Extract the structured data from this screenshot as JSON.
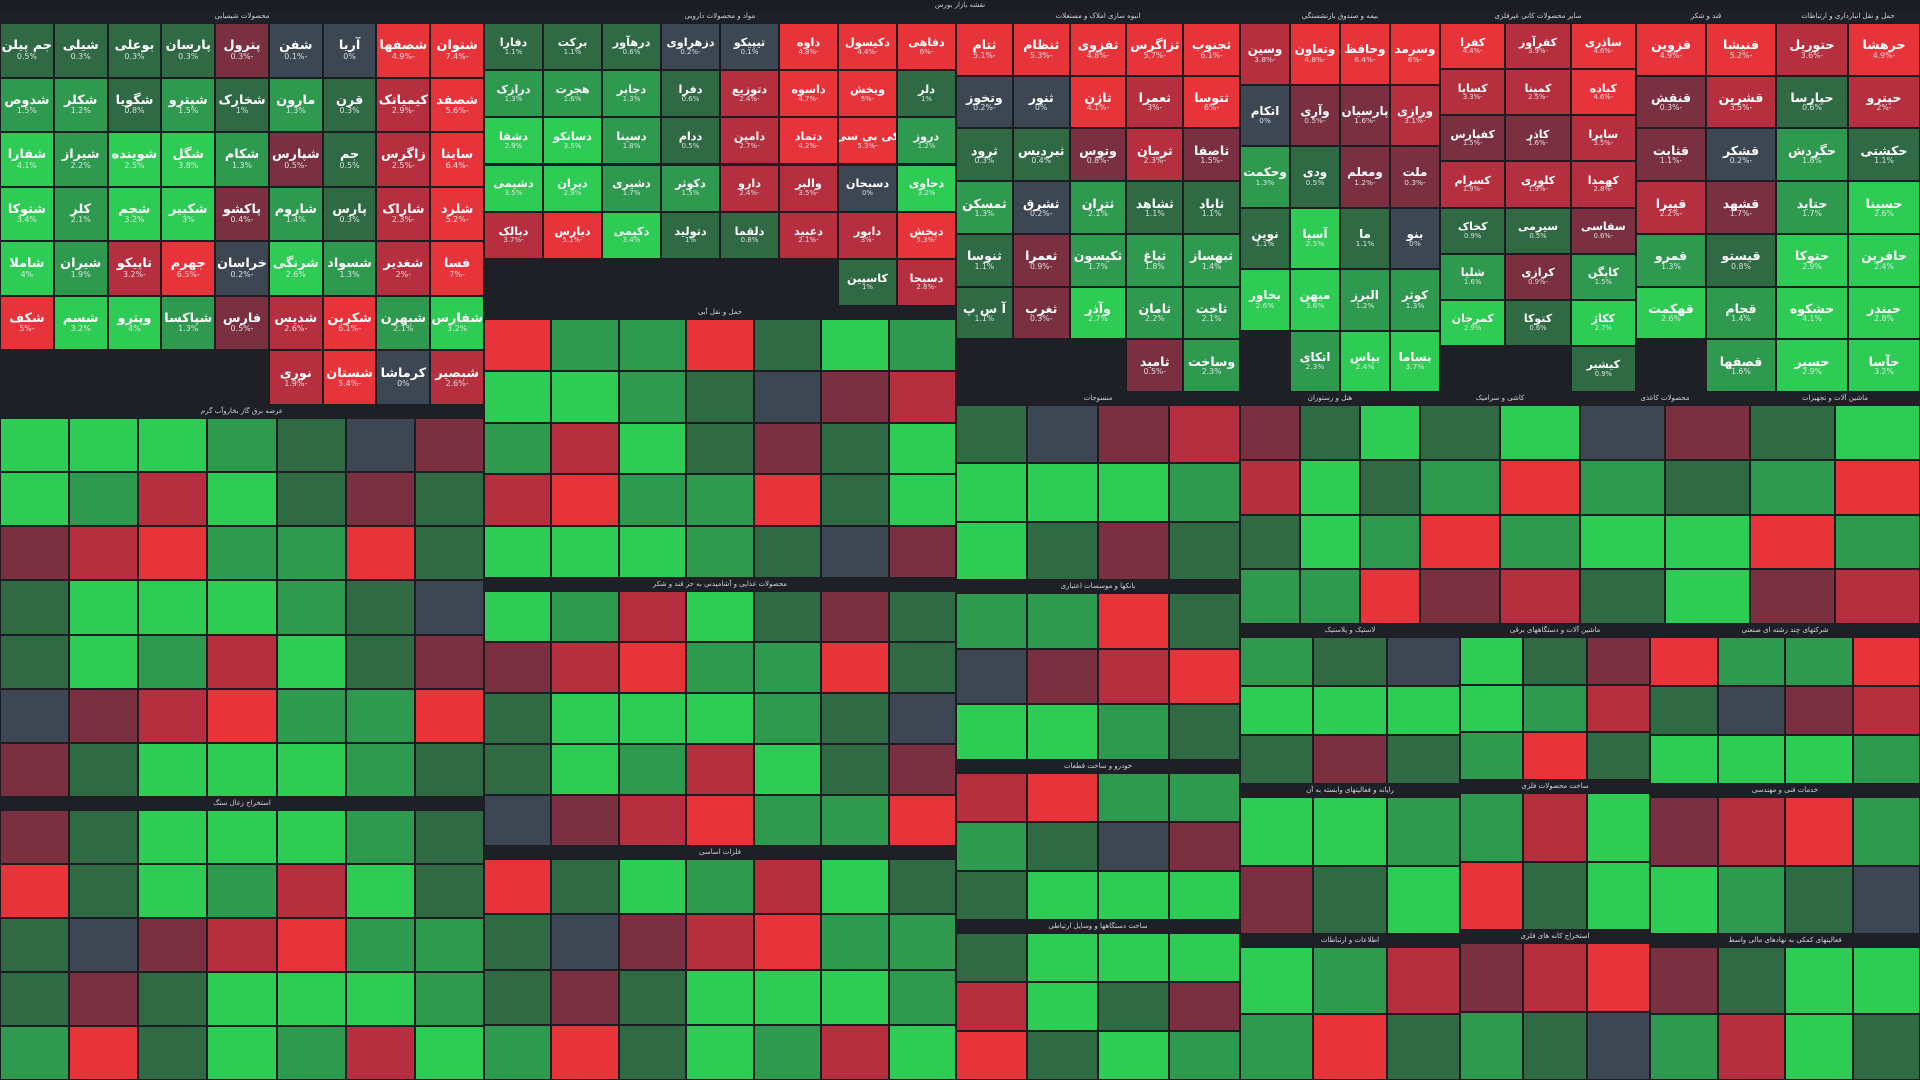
{
  "title": "نقشه بازار بورس",
  "palette": {
    "strong_red": "#e7343b",
    "mid_red": "#b52f3e",
    "weak_red": "#7a3040",
    "flat": "#3d4653",
    "weak_green": "#2f6a45",
    "mid_green": "#2f9a4f",
    "strong_green": "#2ecc55",
    "background": "#1c1d22"
  },
  "chart_data": {
    "type": "treemap",
    "title": "نقشه بازار بورس",
    "sectors": [
      {
        "name": "محصولات شیمیایی",
        "stocks": [
          {
            "symbol": "شتوان",
            "change": -7.4
          },
          {
            "symbol": "شصفها",
            "change": -4.9
          },
          {
            "symbol": "آریا",
            "change": 0
          },
          {
            "symbol": "شفن",
            "change": -0.1
          },
          {
            "symbol": "پترول",
            "change": -0.3
          },
          {
            "symbol": "پارسان",
            "change": 0.3
          },
          {
            "symbol": "بوعلی",
            "change": 0.3
          },
          {
            "symbol": "شیلی",
            "change": 0.3
          },
          {
            "symbol": "جم پیلن",
            "change": 0.5
          },
          {
            "symbol": "شصفد",
            "change": -5.6
          },
          {
            "symbol": "کیمیاتک",
            "change": -2.9
          },
          {
            "symbol": "قرن",
            "change": 0.3
          },
          {
            "symbol": "مارون",
            "change": 1.3
          },
          {
            "symbol": "شخارک",
            "change": 1.0
          },
          {
            "symbol": "شپترو",
            "change": 1.5
          },
          {
            "symbol": "شگویا",
            "change": 0.8
          },
          {
            "symbol": "شکلر",
            "change": 1.2
          },
          {
            "symbol": "شدوص",
            "change": 1.5
          },
          {
            "symbol": "ساینا",
            "change": -6.4
          },
          {
            "symbol": "زاگرس",
            "change": -2.5
          },
          {
            "symbol": "جم",
            "change": 0.5
          },
          {
            "symbol": "شپارس",
            "change": -0.5
          },
          {
            "symbol": "شکام",
            "change": 1.3
          },
          {
            "symbol": "شگل",
            "change": 3.8
          },
          {
            "symbol": "شوینده",
            "change": 2.5
          },
          {
            "symbol": "شیراز",
            "change": 2.2
          },
          {
            "symbol": "شفارا",
            "change": 4.1
          },
          {
            "symbol": "شلرد",
            "change": -5.2
          },
          {
            "symbol": "شاراک",
            "change": -2.3
          },
          {
            "symbol": "پارس",
            "change": 0.3
          },
          {
            "symbol": "شاروم",
            "change": 1.4
          },
          {
            "symbol": "پاکشو",
            "change": -0.4
          },
          {
            "symbol": "شکبیر",
            "change": 3.0
          },
          {
            "symbol": "شجم",
            "change": 3.2
          },
          {
            "symbol": "کلر",
            "change": 2.1
          },
          {
            "symbol": "شتوکا",
            "change": 3.4
          },
          {
            "symbol": "فسا",
            "change": -7.0
          },
          {
            "symbol": "شغدیر",
            "change": -2.0
          },
          {
            "symbol": "شسواد",
            "change": 1.3
          },
          {
            "symbol": "شرنگی",
            "change": 2.6
          },
          {
            "symbol": "خراسان",
            "change": -0.2
          },
          {
            "symbol": "جهرم",
            "change": -6.5
          },
          {
            "symbol": "تاپیکو",
            "change": -3.2
          },
          {
            "symbol": "شیران",
            "change": 1.9
          },
          {
            "symbol": "شاملا",
            "change": 4.0
          },
          {
            "symbol": "شفارس",
            "change": 3.2
          },
          {
            "symbol": "شبهرن",
            "change": 2.1
          },
          {
            "symbol": "شکربن",
            "change": -6.1
          },
          {
            "symbol": "شدیس",
            "change": -2.6
          },
          {
            "symbol": "فارس",
            "change": -0.5
          },
          {
            "symbol": "شپاکسا",
            "change": 1.3
          },
          {
            "symbol": "وپترو",
            "change": 4.0
          },
          {
            "symbol": "شسم",
            "change": 3.2
          },
          {
            "symbol": "شکف",
            "change": -5.0
          },
          {
            "symbol": "شبصیر",
            "change": -2.6
          },
          {
            "symbol": "کرماشا",
            "change": 0
          },
          {
            "symbol": "شستان",
            "change": -5.4
          },
          {
            "symbol": "نوری",
            "change": -1.9
          }
        ]
      },
      {
        "name": "مواد و محصولات دارویی",
        "stocks": [
          {
            "symbol": "دفاهی",
            "change": -6.0
          },
          {
            "symbol": "دکیسول",
            "change": -4.4
          },
          {
            "symbol": "داوه",
            "change": -4.8
          },
          {
            "symbol": "تیپیکو",
            "change": 0.1
          },
          {
            "symbol": "دزهراوی",
            "change": -0.2
          },
          {
            "symbol": "درهآور",
            "change": 0.6
          },
          {
            "symbol": "برکت",
            "change": 1.1
          },
          {
            "symbol": "دفارا",
            "change": 1.1
          },
          {
            "symbol": "دلر",
            "change": 1.0
          },
          {
            "symbol": "ویخش",
            "change": -5.0
          },
          {
            "symbol": "داسوه",
            "change": -4.7
          },
          {
            "symbol": "دتوزیع",
            "change": -2.4
          },
          {
            "symbol": "دفرا",
            "change": 0.6
          },
          {
            "symbol": "دجابر",
            "change": 1.3
          },
          {
            "symbol": "هجرت",
            "change": 1.6
          },
          {
            "symbol": "درازک",
            "change": 1.3
          },
          {
            "symbol": "دروز",
            "change": 1.2
          },
          {
            "symbol": "کی بی سی",
            "change": -5.3
          },
          {
            "symbol": "دتماد",
            "change": -4.2
          },
          {
            "symbol": "دامین",
            "change": -2.7
          },
          {
            "symbol": "ددام",
            "change": 0.5
          },
          {
            "symbol": "دسینا",
            "change": 1.8
          },
          {
            "symbol": "دسانکو",
            "change": 3.5
          },
          {
            "symbol": "دشفا",
            "change": 2.9
          },
          {
            "symbol": "دحاوی",
            "change": 3.2
          },
          {
            "symbol": "دسبحان",
            "change": 0
          },
          {
            "symbol": "والبر",
            "change": -3.5
          },
          {
            "symbol": "دارو",
            "change": -2.4
          },
          {
            "symbol": "دکوثر",
            "change": 1.5
          },
          {
            "symbol": "دشیری",
            "change": 1.7
          },
          {
            "symbol": "دیران",
            "change": 2.9
          },
          {
            "symbol": "دشیمی",
            "change": 3.5
          },
          {
            "symbol": "دپخش",
            "change": -5.3
          },
          {
            "symbol": "دابور",
            "change": -3.0
          },
          {
            "symbol": "دعبید",
            "change": -2.1
          },
          {
            "symbol": "دلقما",
            "change": 0.8
          },
          {
            "symbol": "دتولید",
            "change": 1.0
          },
          {
            "symbol": "دکیمی",
            "change": 3.4
          },
          {
            "symbol": "دیارس",
            "change": -5.1
          },
          {
            "symbol": "دبالک",
            "change": -3.7
          },
          {
            "symbol": "دسبحا",
            "change": -2.8
          },
          {
            "symbol": "کاسپین",
            "change": 1.0
          }
        ]
      },
      {
        "name": "بیمه و صندوق بازنشستگی",
        "stocks": [
          {
            "symbol": "وسرمد",
            "change": -6.0
          },
          {
            "symbol": "وحافظ",
            "change": -6.4
          },
          {
            "symbol": "وتعاون",
            "change": -4.8
          },
          {
            "symbol": "وسین",
            "change": -3.8
          },
          {
            "symbol": "ورازی",
            "change": -3.1
          },
          {
            "symbol": "پارسیان",
            "change": -1.6
          },
          {
            "symbol": "وآری",
            "change": -0.5
          },
          {
            "symbol": "اتکام",
            "change": 0
          },
          {
            "symbol": "ملت",
            "change": -0.3
          },
          {
            "symbol": "ومعلم",
            "change": -1.2
          },
          {
            "symbol": "ودی",
            "change": 0.5
          },
          {
            "symbol": "وحکمت",
            "change": 1.3
          },
          {
            "symbol": "بنو",
            "change": 0
          },
          {
            "symbol": "ما",
            "change": 1.1
          },
          {
            "symbol": "آسیا",
            "change": 2.5
          },
          {
            "symbol": "نوین",
            "change": 1.1
          },
          {
            "symbol": "کوثر",
            "change": 1.3
          },
          {
            "symbol": "البرز",
            "change": 1.2
          },
          {
            "symbol": "میهن",
            "change": 3.6
          },
          {
            "symbol": "بخاور",
            "change": 2.6
          },
          {
            "symbol": "بساما",
            "change": 3.7
          },
          {
            "symbol": "بپاس",
            "change": 2.4
          },
          {
            "symbol": "اتکای",
            "change": 2.3
          }
        ]
      },
      {
        "name": "سایر محصولات کانی غیرفلزی",
        "stocks": [
          {
            "symbol": "ساذری",
            "change": -4.6
          },
          {
            "symbol": "کفرآور",
            "change": -3.9
          },
          {
            "symbol": "کفرا",
            "change": -4.4
          },
          {
            "symbol": "کباده",
            "change": -4.6
          },
          {
            "symbol": "کمینا",
            "change": -2.5
          },
          {
            "symbol": "کسایا",
            "change": -3.3
          },
          {
            "symbol": "ساپرا",
            "change": -3.5
          },
          {
            "symbol": "کاذر",
            "change": -1.6
          },
          {
            "symbol": "کفپارس",
            "change": -1.5
          },
          {
            "symbol": "کهمدا",
            "change": -2.8
          },
          {
            "symbol": "کلوری",
            "change": -1.9
          },
          {
            "symbol": "کسرام",
            "change": -1.9
          },
          {
            "symbol": "سفاسی",
            "change": -0.6
          },
          {
            "symbol": "سیرمی",
            "change": 0.5
          },
          {
            "symbol": "کخاک",
            "change": 0.9
          },
          {
            "symbol": "کایگن",
            "change": 1.5
          },
          {
            "symbol": "کرازی",
            "change": -0.9
          },
          {
            "symbol": "شلیا",
            "change": 1.6
          },
          {
            "symbol": "ککاژ",
            "change": 2.7
          },
          {
            "symbol": "کتوکا",
            "change": 0.6
          },
          {
            "symbol": "کمرجان",
            "change": 2.9
          },
          {
            "symbol": "کیشیر",
            "change": 0.9
          }
        ]
      },
      {
        "name": "قند و شکر",
        "stocks": [
          {
            "symbol": "قنیشا",
            "change": -5.2
          },
          {
            "symbol": "قزوین",
            "change": -4.9
          },
          {
            "symbol": "قشرین",
            "change": -3.5
          },
          {
            "symbol": "قنقش",
            "change": -0.3
          },
          {
            "symbol": "قشکر",
            "change": -0.2
          },
          {
            "symbol": "قثابت",
            "change": -1.1
          },
          {
            "symbol": "قشهد",
            "change": -1.7
          },
          {
            "symbol": "قپیرا",
            "change": -2.2
          },
          {
            "symbol": "قیستو",
            "change": 0.8
          },
          {
            "symbol": "قمرو",
            "change": 1.3
          },
          {
            "symbol": "قجام",
            "change": 1.4
          },
          {
            "symbol": "قهکمت",
            "change": 2.6
          },
          {
            "symbol": "قصفها",
            "change": 1.6
          }
        ]
      },
      {
        "name": "حمل و نقل انبارداری و ارتباطات",
        "stocks": [
          {
            "symbol": "حرهشا",
            "change": -4.9
          },
          {
            "symbol": "حتوریل",
            "change": -3.6
          },
          {
            "symbol": "حپترو",
            "change": -2.0
          },
          {
            "symbol": "حپارسا",
            "change": 0.6
          },
          {
            "symbol": "حکشتی",
            "change": 1.1
          },
          {
            "symbol": "حگردش",
            "change": 1.8
          },
          {
            "symbol": "حسینا",
            "change": 2.6
          },
          {
            "symbol": "حتاید",
            "change": 1.7
          },
          {
            "symbol": "حافرین",
            "change": 2.4
          },
          {
            "symbol": "حتوکا",
            "change": 2.9
          },
          {
            "symbol": "حبندر",
            "change": 2.8
          },
          {
            "symbol": "حشکوه",
            "change": 4.1
          },
          {
            "symbol": "حآسا",
            "change": 3.2
          },
          {
            "symbol": "حسیر",
            "change": 2.9
          }
        ]
      },
      {
        "name": "انبوه سازی املاک و مستغلات",
        "stocks": [
          {
            "symbol": "ثجنوب",
            "change": -6.1
          },
          {
            "symbol": "ثزاگرس",
            "change": -5.7
          },
          {
            "symbol": "ثفزوی",
            "change": -4.8
          },
          {
            "symbol": "ثنظام",
            "change": -5.3
          },
          {
            "symbol": "ثتام",
            "change": -5.1
          },
          {
            "symbol": "ثتوسا",
            "change": -6.0
          },
          {
            "symbol": "ثعمرا",
            "change": -3.0
          },
          {
            "symbol": "ثاژن",
            "change": -4.1
          },
          {
            "symbol": "ثنور",
            "change": 0
          },
          {
            "symbol": "وتخوز",
            "change": -0.2
          },
          {
            "symbol": "ثاصفا",
            "change": -1.5
          },
          {
            "symbol": "ثرمان",
            "change": -2.3
          },
          {
            "symbol": "وتوس",
            "change": -0.8
          },
          {
            "symbol": "ثبردیس",
            "change": 0.4
          },
          {
            "symbol": "ثرود",
            "change": 0.3
          },
          {
            "symbol": "ثاباد",
            "change": 1.1
          },
          {
            "symbol": "ثشاهد",
            "change": 1.1
          },
          {
            "symbol": "ثتران",
            "change": 2.1
          },
          {
            "symbol": "ثشرق",
            "change": -0.2
          },
          {
            "symbol": "ثمسکن",
            "change": 1.3
          },
          {
            "symbol": "ثبهساز",
            "change": 1.4
          },
          {
            "symbol": "ثباغ",
            "change": 1.8
          },
          {
            "symbol": "ثکیسون",
            "change": 1.7
          },
          {
            "symbol": "ثعمرا",
            "change": -0.9
          },
          {
            "symbol": "ثنوسا",
            "change": 1.1
          },
          {
            "symbol": "ثاخت",
            "change": 2.1
          },
          {
            "symbol": "ثامان",
            "change": 2.2
          },
          {
            "symbol": "وآذر",
            "change": 2.7
          },
          {
            "symbol": "ثغرب",
            "change": -0.3
          },
          {
            "symbol": "آ س پ",
            "change": 1.1
          },
          {
            "symbol": "وساخت",
            "change": 2.3
          },
          {
            "symbol": "ثامید",
            "change": -0.5
          }
        ]
      }
    ]
  },
  "sector_labels": [
    "محصولات شیمیایی",
    "مواد و محصولات دارویی",
    "انبوه سازی املاک و مستغلات",
    "بیمه و صندوق بازنشستگی به جزتامین اجتماعی",
    "سایر محصولات کانی غیرفلزی",
    "قند و شکر",
    "حمل ونقل انبارداری و ارتباطات",
    "سیمان آهک و گچ",
    "سرمایه گذاریها",
    "زراعت و خدمات وابسته",
    "سایر واسطه گریهای مالی",
    "فراورده های نفتی کک و سوخت هسته ای",
    "ماشین آلات و تجهیزات",
    "عرضه برق گاز بخاروآب گرم",
    "محصولات غذایی و آشامیدنی به جز قند و شکر",
    "بانکها و موسسات اعتباری",
    "لاستیک و پلاستیک",
    "ماشین آلات و دستگاههای برقی",
    "شرکتهای چند رشته ای صنعتی",
    "استخراج زغال سنگ",
    "فلزات اساسی",
    "خودرو و ساخت قطعات",
    "رایانه و فعالیتهای وابسته به آن",
    "ساخت محصولات فلزی",
    "خدمات فنی و مهندسی",
    "ساخت دستگاهها و وسایل ارتباطی",
    "اطلاعات و ارتباطات",
    "استخراج کانه های فلزی",
    "فعالیتهای کمکی به نهادهای مالی واسط",
    "حمل و نقل آبی",
    "منسوجات",
    "هتل و رستوران",
    "کاشی و سرامیک",
    "محصولات کاغذی"
  ],
  "tiles_text": {}
}
